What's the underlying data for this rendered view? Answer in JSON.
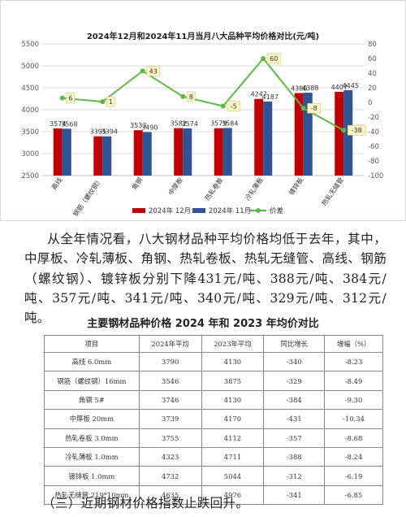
{
  "chart_data": {
    "type": "bar",
    "title": "2024年12月和2024年11月当月八大品种平均价格对比(元/吨)",
    "categories": [
      "高线",
      "钢筋（螺纹钢）",
      "角钢",
      "中厚板",
      "热轧卷板",
      "冷轧薄板",
      "镀锌板",
      "热轧无缝管"
    ],
    "series": [
      {
        "name": "2024年 12月",
        "values": [
          3574,
          3395,
          3533,
          3582,
          3579,
          4247,
          4380,
          4407
        ],
        "color": "#c00000"
      },
      {
        "name": "2024年 11月",
        "values": [
          3568,
          3394,
          3490,
          3574,
          3584,
          4187,
          4388,
          4445
        ],
        "color": "#2f5597"
      },
      {
        "name": "价差",
        "values": [
          6,
          1,
          43,
          8,
          -5,
          60,
          -8,
          -38
        ],
        "color": "#5cb847",
        "type": "line",
        "axis": "right"
      }
    ],
    "y_left": {
      "min": 2500,
      "max": 5500,
      "ticks": [
        2500,
        3000,
        3500,
        4000,
        4500,
        5000,
        5500
      ]
    },
    "y_right": {
      "min": -100,
      "max": 80,
      "ticks": [
        80,
        60,
        40,
        20,
        0,
        -20,
        -40,
        -60,
        -80,
        -100
      ]
    },
    "legend_position": "bottom",
    "grid": true
  },
  "paragraph": "从全年情况看，八大钢材品种平均价格均低于去年，其中，中厚板、冷轧薄板、角钢、热轧卷板、热轧无缝管、高线、钢筋（螺纹钢）、镀锌板分别下降431元/吨、388元/吨、384元/吨、357元/吨、341元/吨、340元/吨、329元/吨、312元/吨。",
  "table": {
    "title": "主要钢材品种价格 2024 年和 2023 年均价对比",
    "headers": [
      "项目",
      "2024年平均",
      "2023年平均",
      "同比增长",
      "增幅（%）"
    ],
    "rows": [
      [
        "高线 6.0mm",
        "3790",
        "4130",
        "-340",
        "-8.23"
      ],
      [
        "钢筋（螺纹钢）16mm",
        "3546",
        "3875",
        "-329",
        "-8.49"
      ],
      [
        "角钢 5#",
        "3746",
        "4130",
        "-384",
        "-9.30"
      ],
      [
        "中厚板 20mm",
        "3739",
        "4170",
        "-431",
        "-10.34"
      ],
      [
        "热轧卷板 3.0mm",
        "3755",
        "4112",
        "-357",
        "-8.68"
      ],
      [
        "冷轧薄板 1.0mm",
        "4323",
        "4711",
        "-388",
        "-8.24"
      ],
      [
        "镀锌板 1.0mm",
        "4732",
        "5044",
        "-312",
        "-6.19"
      ],
      [
        "热轧无缝管 219*10mm",
        "4635",
        "4976",
        "-341",
        "-6.85"
      ]
    ]
  },
  "footer": "（三）近期钢材价格指数止跌回升。"
}
